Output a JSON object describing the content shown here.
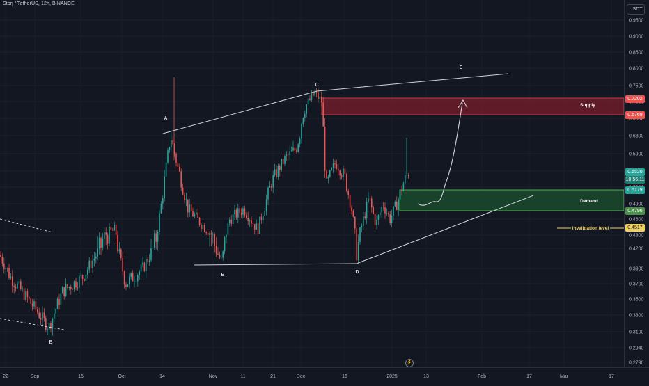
{
  "header": {
    "symbol_title": "Storj / TetherUS, 12h, BINANCE",
    "currency": "USDT"
  },
  "price_axis": {
    "ticks": [
      "0.9500",
      "0.9000",
      "0.8500",
      "0.8000",
      "0.7500",
      "0.7000",
      "0.6500",
      "0.6300",
      "0.5900",
      "0.5500",
      "0.5200",
      "0.4900",
      "0.4600",
      "0.4300",
      "0.4200",
      "0.3900",
      "0.3700",
      "0.3500",
      "0.3300",
      "0.3100",
      "0.2940",
      "0.2790"
    ],
    "tags": {
      "supply_top": "0.7202",
      "supply_bottom": "0.6769",
      "current_price": "0.5520",
      "countdown": "10:56:11",
      "demand_top": "0.5179",
      "demand_bottom": "0.4796",
      "invalidation": "0.4517"
    }
  },
  "time_axis": {
    "labels": [
      "22",
      "Sep",
      "16",
      "Oct",
      "14",
      "Nov",
      "11",
      "21",
      "Dec",
      "16",
      "2025",
      "13",
      "Feb",
      "17",
      "Mar",
      "17"
    ]
  },
  "annotations": {
    "point_a": "A",
    "point_b_left": "B",
    "point_b_mid": "B",
    "point_c": "C",
    "point_d": "D",
    "point_e": "E",
    "supply_label": "Supply",
    "demand_label": "Demand",
    "invalidation_label": "invalidation level"
  },
  "colors": {
    "background": "#131722",
    "bull": "#26a69a",
    "bear": "#ef5350",
    "supply_zone": "#7a1f2b",
    "demand_zone": "#1b4a2b",
    "invalidation": "#f0d060",
    "current_price_tag": "#26a69a",
    "countdown_tag": "#1e7d72"
  },
  "chart_data": {
    "type": "candlestick",
    "symbol": "Storj / TetherUS",
    "interval": "12h",
    "exchange": "BINANCE",
    "ylim": [
      0.279,
      0.95
    ],
    "close_path": [
      {
        "x": "Aug 22",
        "y": 0.41
      },
      {
        "x": "Sep 1",
        "y": 0.35
      },
      {
        "x": "Sep 6",
        "y": 0.31
      },
      {
        "x": "Sep 16",
        "y": 0.38
      },
      {
        "x": "Sep 28",
        "y": 0.44
      },
      {
        "x": "Oct 8",
        "y": 0.37
      },
      {
        "x": "Oct 14",
        "y": 0.45
      },
      {
        "x": "Oct 17",
        "y": 0.62
      },
      {
        "x": "Oct 25",
        "y": 0.48
      },
      {
        "x": "Nov 5",
        "y": 0.4
      },
      {
        "x": "Nov 15",
        "y": 0.47
      },
      {
        "x": "Nov 25",
        "y": 0.58
      },
      {
        "x": "Dec 5",
        "y": 0.72
      },
      {
        "x": "Dec 10",
        "y": 0.56
      },
      {
        "x": "Dec 16",
        "y": 0.53
      },
      {
        "x": "Dec 20",
        "y": 0.4
      },
      {
        "x": "Dec 28",
        "y": 0.49
      },
      {
        "x": "Jan 5",
        "y": 0.55
      }
    ],
    "points_labeled": [
      {
        "label": "A",
        "x": "Oct 16",
        "y": 0.63
      },
      {
        "label": "B",
        "x": "Sep 6",
        "y": 0.31
      },
      {
        "label": "B",
        "x": "Nov 6",
        "y": 0.4
      },
      {
        "label": "C",
        "x": "Dec 4",
        "y": 0.725
      },
      {
        "label": "D",
        "x": "Dec 20",
        "y": 0.4
      },
      {
        "label": "E",
        "x": "Jan 20",
        "y": 0.79
      }
    ],
    "zones": [
      {
        "name": "Supply",
        "from": 0.6769,
        "to": 0.7202
      },
      {
        "name": "Demand",
        "from": 0.4796,
        "to": 0.5179
      }
    ],
    "levels": [
      {
        "name": "invalidation level",
        "value": 0.4517
      }
    ],
    "current_price": 0.552
  }
}
